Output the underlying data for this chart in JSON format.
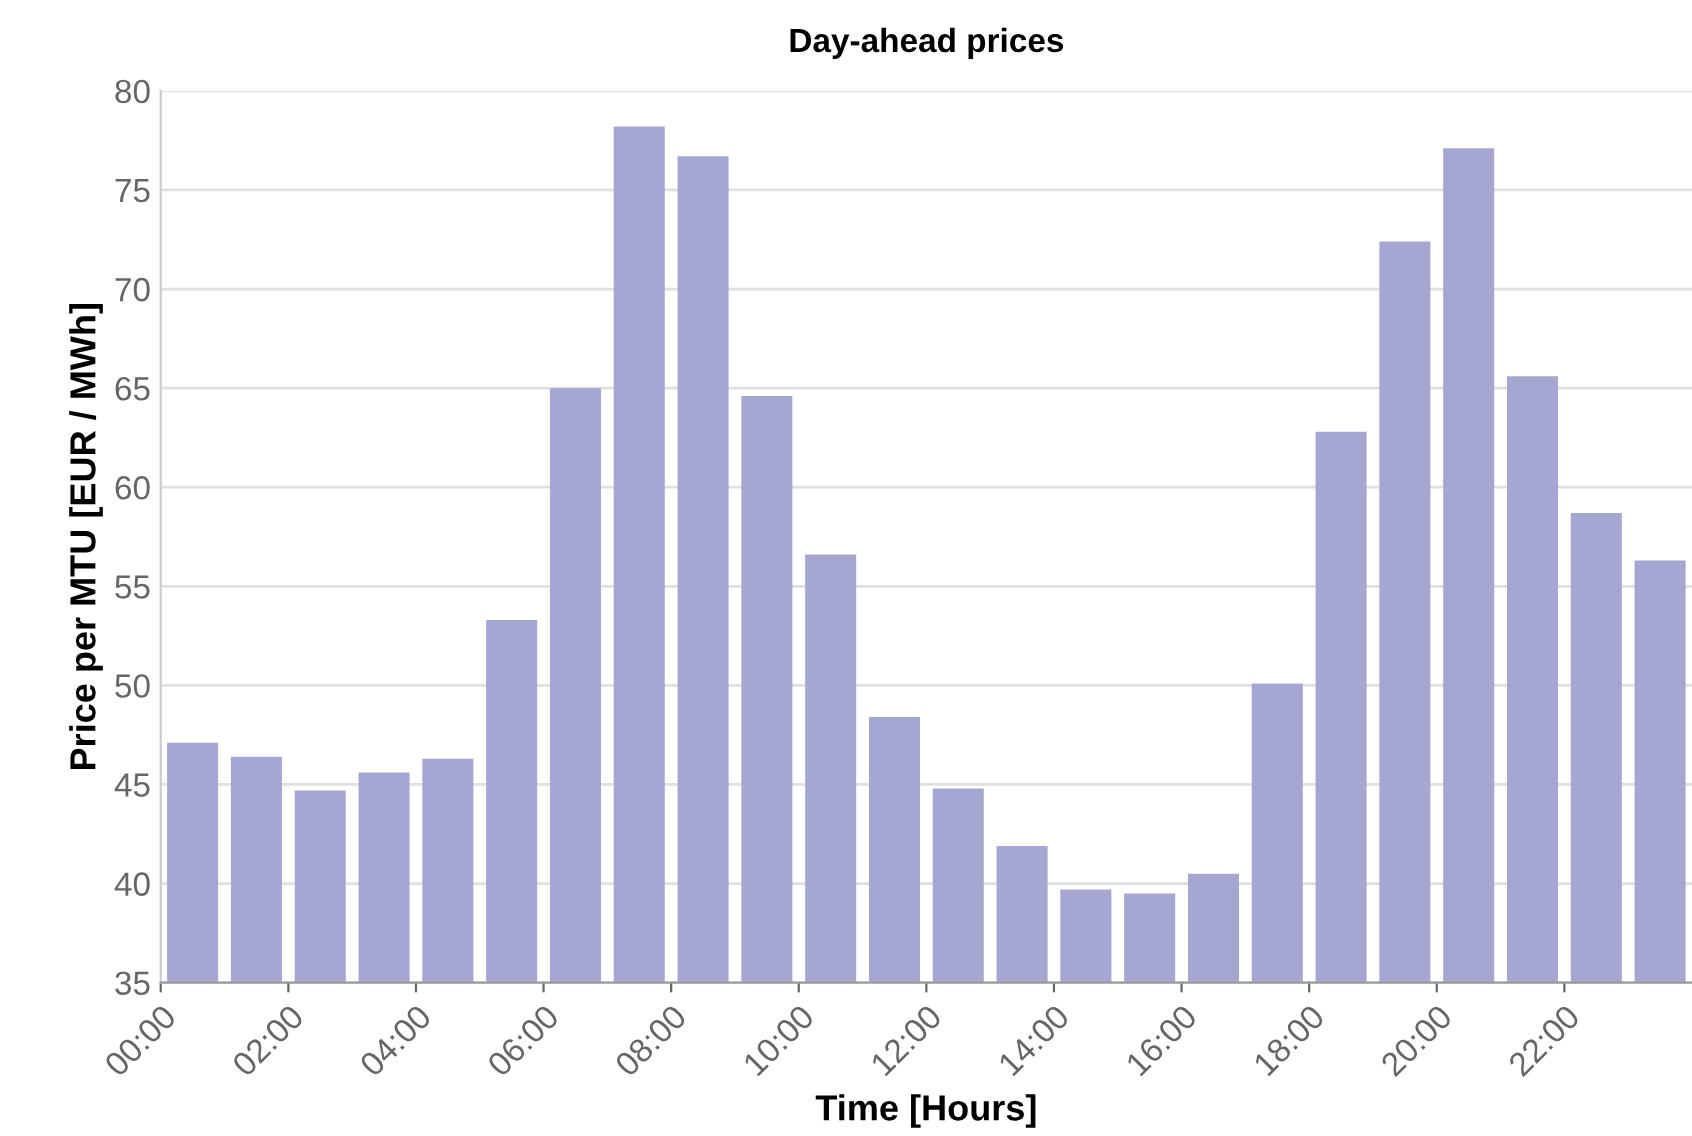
{
  "chart_data": {
    "type": "bar",
    "title": "Day-ahead prices",
    "xlabel": "Time [Hours]",
    "ylabel": "Price per MTU [EUR / MWh]",
    "categories": [
      "00:00",
      null,
      "02:00",
      null,
      "04:00",
      null,
      "06:00",
      null,
      "08:00",
      null,
      "10:00",
      null,
      "12:00",
      null,
      "14:00",
      null,
      "16:00",
      null,
      "18:00",
      null,
      "20:00",
      null,
      "22:00",
      null
    ],
    "values": [
      47.1,
      46.4,
      44.7,
      45.6,
      46.3,
      53.3,
      65.0,
      78.2,
      76.7,
      64.6,
      56.6,
      48.4,
      44.8,
      41.9,
      39.7,
      39.5,
      40.5,
      50.1,
      62.8,
      72.4,
      77.1,
      65.6,
      58.7,
      56.3
    ],
    "color": "#a6a6d2",
    "ylim": [
      35,
      80
    ],
    "yticks": [
      35,
      40,
      45,
      50,
      55,
      60,
      65,
      70,
      75,
      80
    ],
    "grid": "y"
  }
}
